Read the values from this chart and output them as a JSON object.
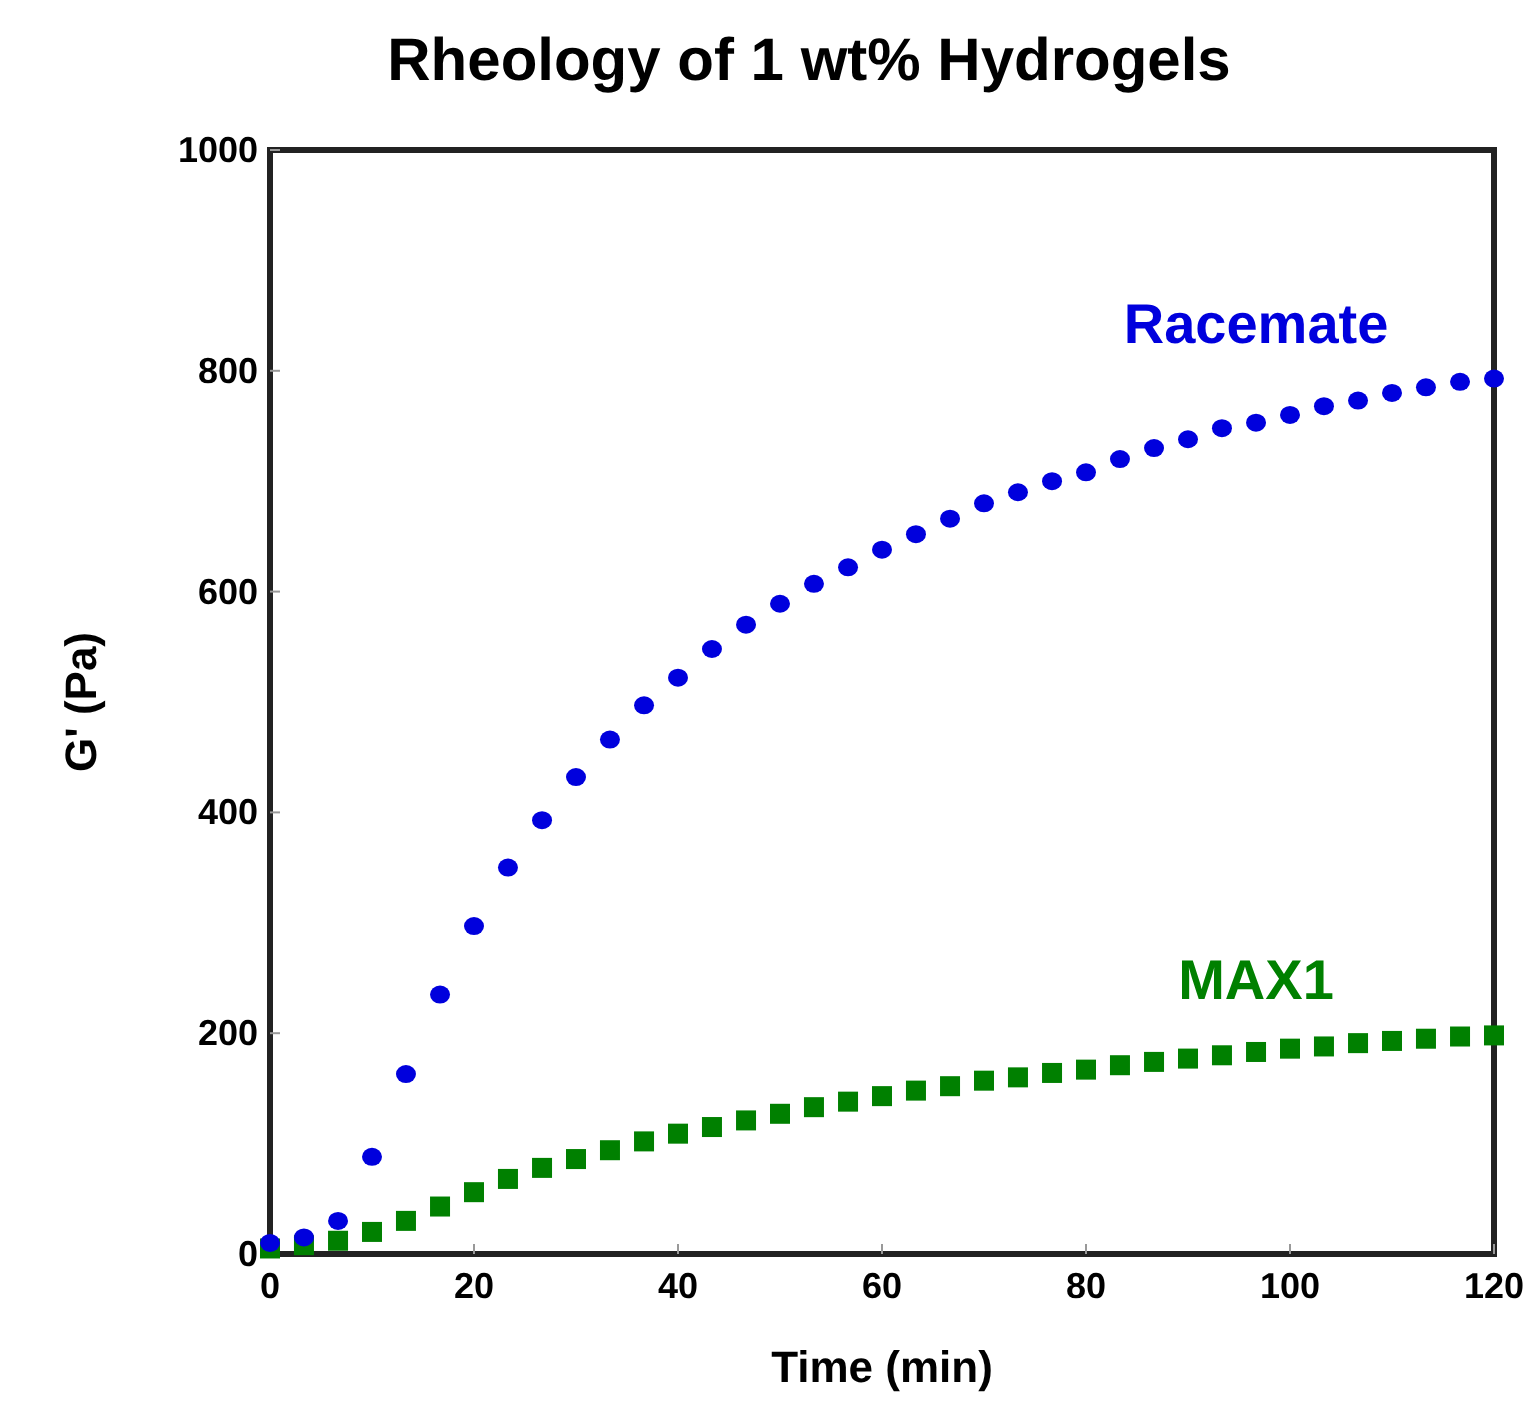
{
  "chart_data": {
    "type": "scatter",
    "title": "Rheology of 1 wt% Hydrogels",
    "xlabel": "Time (min)",
    "ylabel": "G' (Pa)",
    "x": [
      0,
      3.33,
      6.67,
      10,
      13.33,
      16.67,
      20,
      23.33,
      26.67,
      30,
      33.33,
      36.67,
      40,
      43.33,
      46.67,
      50,
      53.33,
      56.67,
      60,
      63.33,
      66.67,
      70,
      73.33,
      76.67,
      80,
      83.33,
      86.67,
      90,
      93.33,
      96.67,
      100,
      103.33,
      106.67,
      110,
      113.33,
      116.67,
      120
    ],
    "series": [
      {
        "name": "Racemate",
        "color": "#0000dd",
        "marker": "circle",
        "values": [
          10,
          15,
          30,
          88,
          163,
          235,
          297,
          350,
          393,
          432,
          466,
          497,
          522,
          548,
          570,
          589,
          607,
          622,
          638,
          652,
          666,
          680,
          690,
          700,
          708,
          720,
          730,
          738,
          748,
          753,
          760,
          768,
          773,
          780,
          785,
          790,
          793
        ]
      },
      {
        "name": "MAX1",
        "color": "#008000",
        "marker": "square",
        "values": [
          5,
          8,
          12,
          20,
          30,
          43,
          56,
          68,
          78,
          86,
          94,
          102,
          109,
          115,
          121,
          127,
          133,
          138,
          143,
          148,
          152,
          157,
          160,
          164,
          167,
          171,
          174,
          177,
          180,
          183,
          186,
          188,
          191,
          193,
          195,
          197,
          198
        ]
      }
    ],
    "xlim": [
      0,
      120
    ],
    "xticks": [
      0,
      20,
      40,
      60,
      80,
      100,
      120
    ],
    "ylim": [
      0,
      1000
    ],
    "yticks": [
      0,
      200,
      400,
      600,
      800,
      1000
    ],
    "grid": false
  }
}
